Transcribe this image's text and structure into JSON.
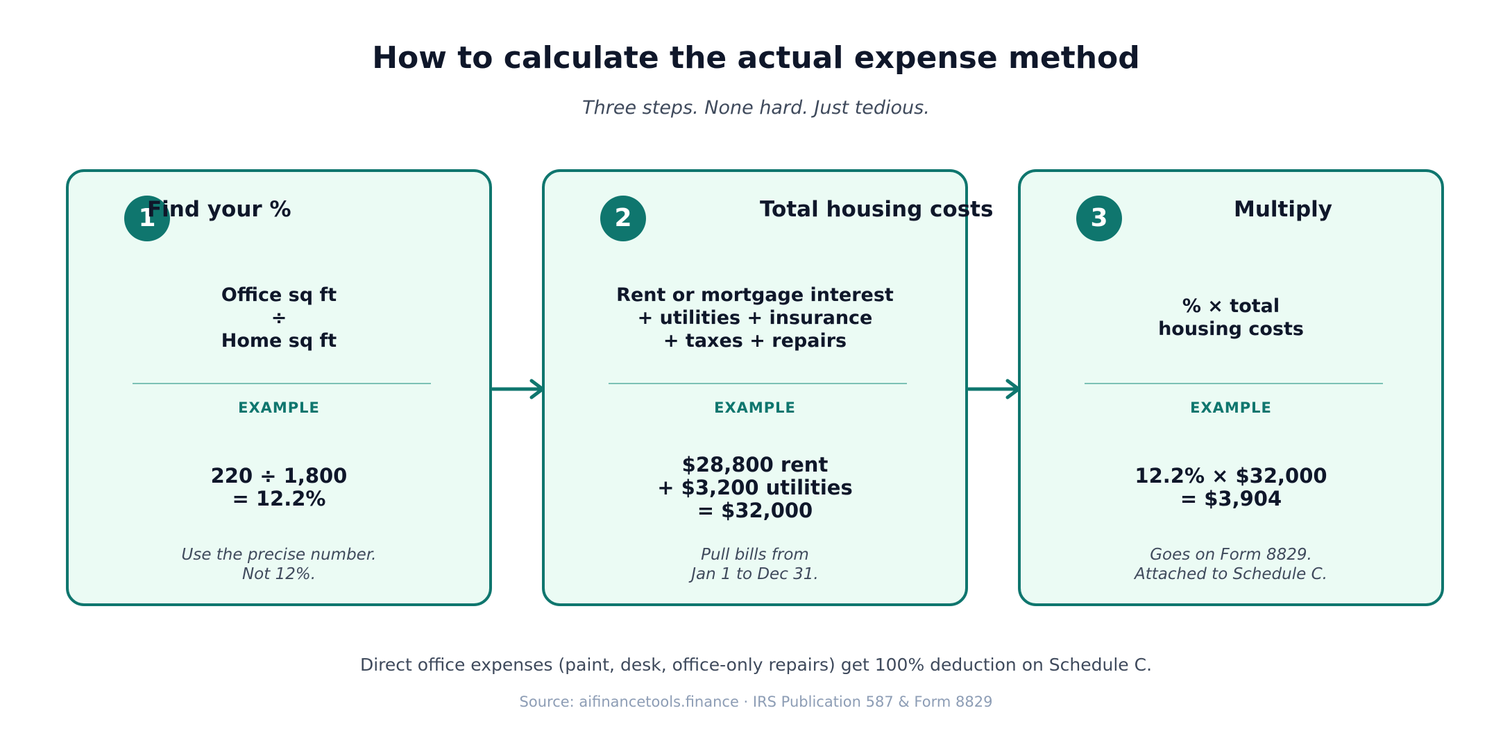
{
  "title": "How to calculate the actual expense method",
  "subtitle": "Three steps. None hard. Just tedious.",
  "steps": [
    {
      "number": "1",
      "title": "Find your %",
      "formula_lines": [
        "Office sq ft",
        "÷",
        "Home sq ft"
      ],
      "example_label": "EXAMPLE",
      "example_lines": [
        "220 ÷ 1,800",
        "= 12.2%"
      ],
      "note_lines": [
        "Use the precise number.",
        "Not 12%."
      ]
    },
    {
      "number": "2",
      "title": "Total housing costs",
      "formula_lines": [
        "Rent or mortgage interest",
        "+ utilities + insurance",
        "+ taxes + repairs"
      ],
      "example_label": "EXAMPLE",
      "example_lines": [
        "$28,800 rent",
        "+ $3,200 utilities",
        "= $32,000"
      ],
      "note_lines": [
        "Pull bills from",
        "Jan 1 to Dec 31."
      ]
    },
    {
      "number": "3",
      "title": "Multiply",
      "formula_lines": [
        "% × total",
        "housing costs"
      ],
      "example_label": "EXAMPLE",
      "example_lines": [
        "12.2% × $32,000",
        "= $3,904"
      ],
      "note_lines": [
        "Goes on Form 8829.",
        "Attached to Schedule C."
      ]
    }
  ],
  "footer_note": "Direct office expenses (paint, desk, office-only repairs) get 100% deduction on Schedule C.",
  "source": "Source: aifinancetools.finance · IRS Publication 587 & Form 8829",
  "colors": {
    "accent": "#0f766e",
    "card_fill": "#ebfbf4",
    "text_dark": "#0f172a",
    "text_muted": "#3f4a5c",
    "source_text": "#8d9db5"
  },
  "icons": {
    "connector": "arrow-right-icon"
  }
}
